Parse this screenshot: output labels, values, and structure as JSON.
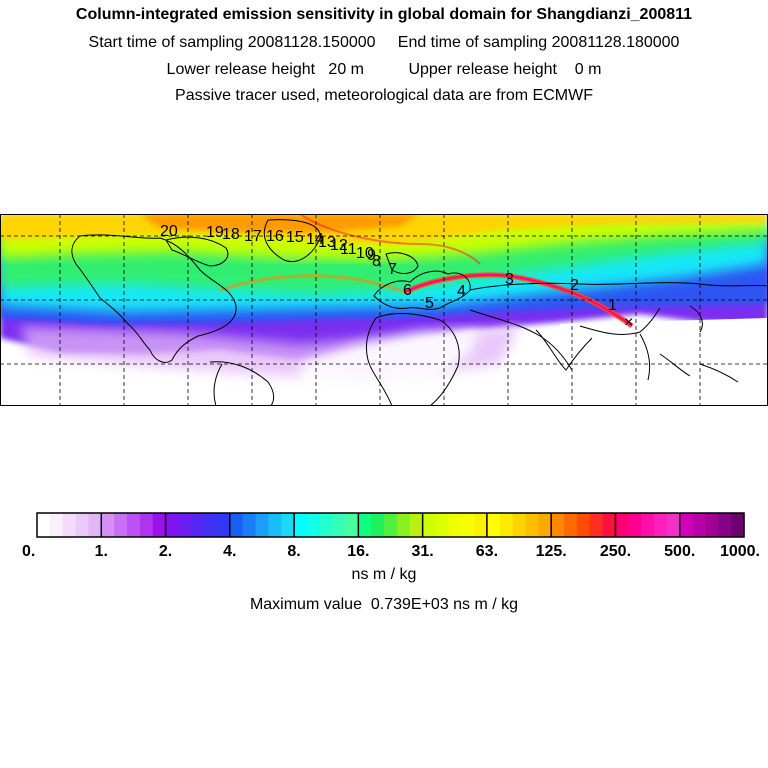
{
  "header": {
    "title": "Column-integrated emission sensitivity in global domain for Shangdianzi_200811",
    "line1": "Start time of sampling 20081128.150000     End time of sampling 20081128.180000",
    "line2": "Lower release height   20 m          Upper release height    0 m",
    "line3": "Passive tracer used, meteorological data are from ECMWF"
  },
  "map": {
    "trajectory_labels": [
      "1",
      "2",
      "3",
      "4",
      "5",
      "6",
      "7",
      "8",
      "9",
      "10",
      "11",
      "12",
      "13",
      "14",
      "15",
      "16",
      "17",
      "18",
      "19",
      "20"
    ],
    "receptor_marker": "×"
  },
  "colorbar": {
    "tick_labels": [
      "0.",
      "1.",
      "2.",
      "4.",
      "8.",
      "16.",
      "31.",
      "63.",
      "125.",
      "250.",
      "500.",
      "1000."
    ],
    "colors": [
      "#ffffff",
      "#fbeefd",
      "#f3dcfb",
      "#ebc9f9",
      "#e2b5f7",
      "#d58ff5",
      "#c86ff4",
      "#bb52f1",
      "#ad35ee",
      "#9c10ea",
      "#7f14ee",
      "#6a1ef0",
      "#5626f2",
      "#4030f2",
      "#2f3af2",
      "#1a60f4",
      "#1a7ff6",
      "#1a9ef8",
      "#1abcfa",
      "#1ad9fb",
      "#00ffff",
      "#12ffe8",
      "#24ffd0",
      "#36ffb8",
      "#48ffa0",
      "#10ff80",
      "#20f060",
      "#50f040",
      "#88f020",
      "#b8f010",
      "#ccff00",
      "#ddff00",
      "#eeff00",
      "#f6ff00",
      "#fbf000",
      "#ffff00",
      "#ffea00",
      "#ffd400",
      "#ffbe00",
      "#ffa800",
      "#ff8800",
      "#ff6a00",
      "#ff4c00",
      "#ff2e20",
      "#ff1040",
      "#ff0070",
      "#ff0090",
      "#ff10a8",
      "#ff20bc",
      "#f030c8",
      "#d000b8",
      "#b800a8",
      "#a00098",
      "#880088",
      "#700070"
    ],
    "unit": "ns m / kg",
    "maximum_text": "Maximum value  0.739E+03 ns m / kg"
  }
}
